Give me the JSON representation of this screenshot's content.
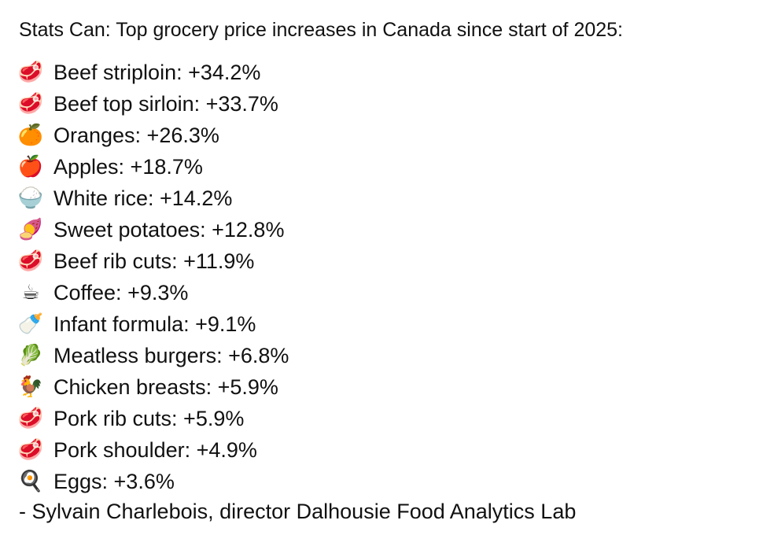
{
  "title": "Stats Can: Top grocery price increases in Canada since start of 2025:",
  "items": [
    {
      "emoji": "🥩",
      "icon": "meat-icon",
      "text": "Beef striploin: +34.2%"
    },
    {
      "emoji": "🥩",
      "icon": "meat-icon",
      "text": "Beef top sirloin: +33.7%"
    },
    {
      "emoji": "🍊",
      "icon": "orange-icon",
      "text": "Oranges: +26.3%"
    },
    {
      "emoji": "🍎",
      "icon": "apple-icon",
      "text": "Apples: +18.7%"
    },
    {
      "emoji": "🍚",
      "icon": "rice-icon",
      "text": "White rice: +14.2%"
    },
    {
      "emoji": "🍠",
      "icon": "sweet-potato-icon",
      "text": "Sweet potatoes: +12.8%"
    },
    {
      "emoji": "🥩",
      "icon": "meat-icon",
      "text": "Beef rib cuts: +11.9%"
    },
    {
      "emoji": "☕",
      "icon": "coffee-icon",
      "text": "Coffee: +9.3%"
    },
    {
      "emoji": "🍼",
      "icon": "baby-bottle-icon",
      "text": "Infant formula: +9.1%"
    },
    {
      "emoji": "🥬",
      "icon": "leafy-green-icon",
      "text": "Meatless burgers: +6.8%"
    },
    {
      "emoji": "🐓",
      "icon": "rooster-icon",
      "text": "Chicken breasts: +5.9%"
    },
    {
      "emoji": "🥩",
      "icon": "meat-icon",
      "text": "Pork rib cuts: +5.9%"
    },
    {
      "emoji": "🥩",
      "icon": "meat-icon",
      "text": "Pork shoulder: +4.9%"
    },
    {
      "emoji": "🍳",
      "icon": "fried-egg-icon",
      "text": "Eggs: +3.6%"
    }
  ],
  "credit": "- Sylvain Charlebois, director Dalhousie Food Analytics Lab"
}
